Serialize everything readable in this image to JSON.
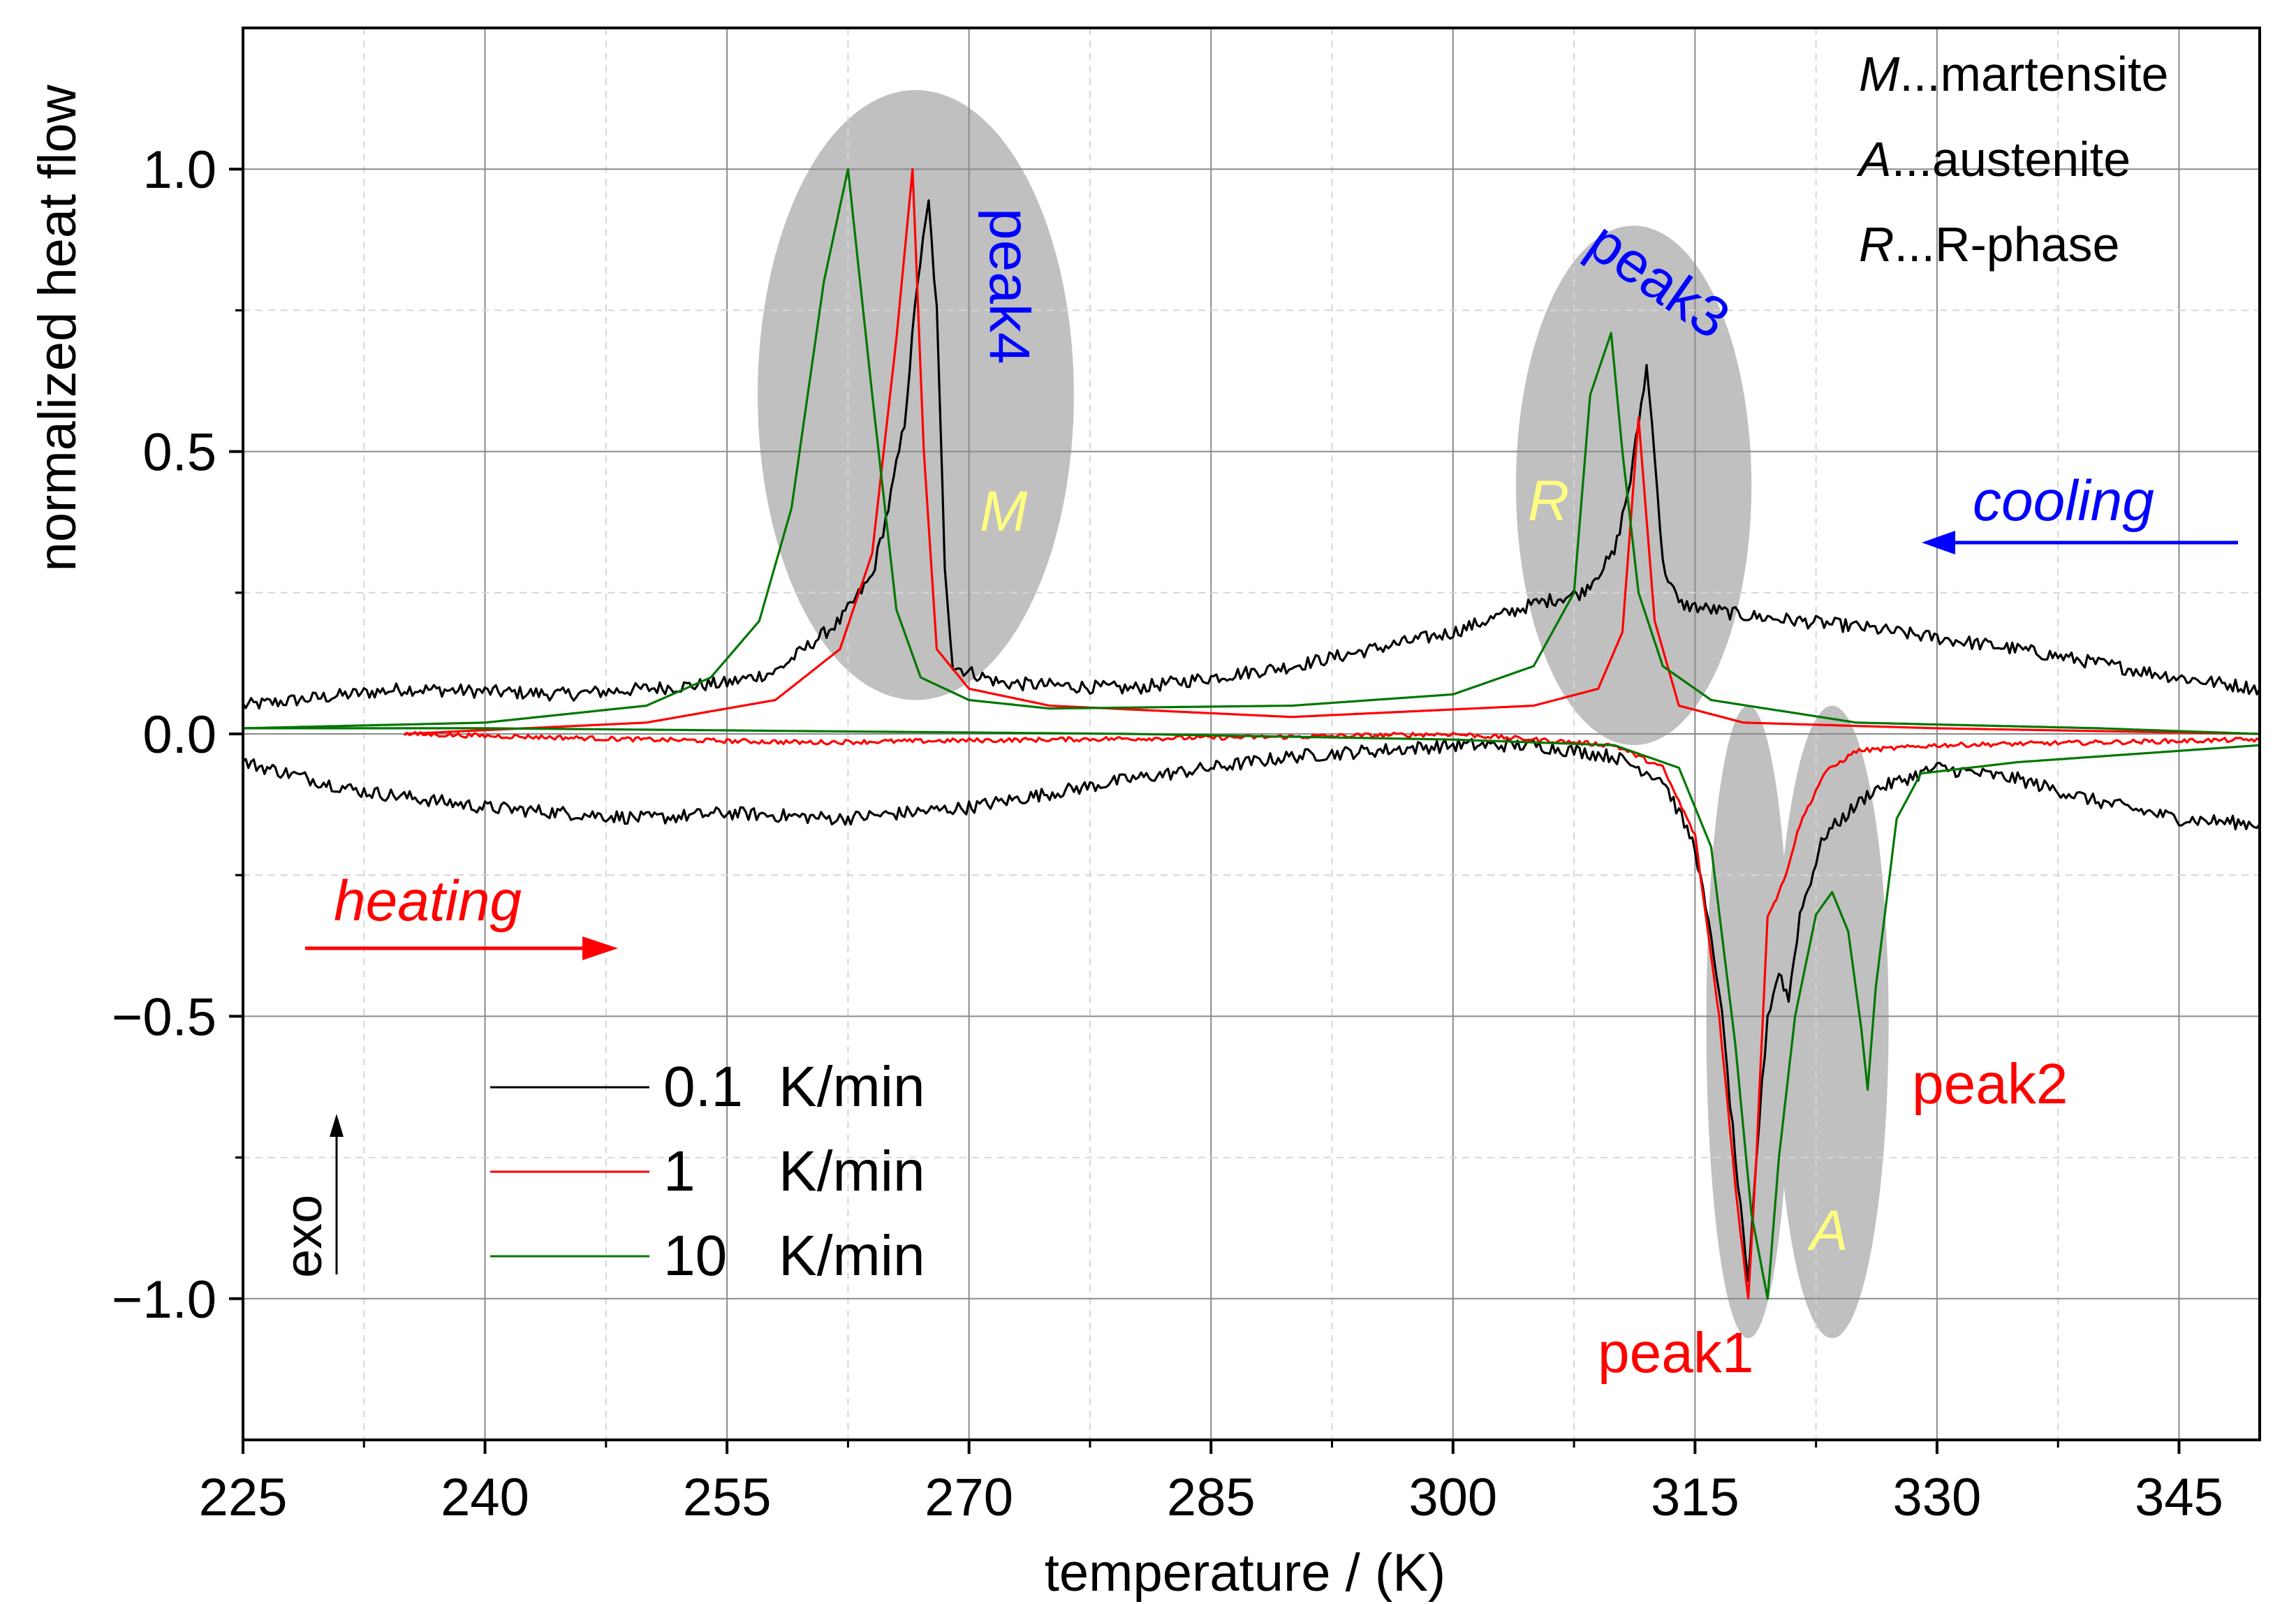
{
  "chart_data": {
    "type": "line",
    "xlabel": "temperature / (K)",
    "ylabel": "normalized heat flow",
    "xlim": [
      225,
      350
    ],
    "ylim": [
      -1.25,
      1.25
    ],
    "x_ticks": [
      225,
      240,
      255,
      270,
      285,
      300,
      315,
      330,
      345
    ],
    "x_tick_labels": [
      "225",
      "240",
      "255",
      "270",
      "285",
      "300",
      "315",
      "330",
      "345"
    ],
    "y_ticks": [
      -1.0,
      -0.5,
      0.0,
      0.5,
      1.0
    ],
    "y_tick_labels": [
      "−1.0",
      "−0.5",
      "0.0",
      "0.5",
      "1.0"
    ],
    "grid": true,
    "legend": {
      "placement": "bottom-left",
      "entries": [
        {
          "rate": "0.1",
          "unit": "K/min",
          "color": "#000000"
        },
        {
          "rate": "1",
          "unit": "K/min",
          "color": "#ff0000"
        },
        {
          "rate": "10",
          "unit": "K/min",
          "color": "#007700"
        }
      ]
    },
    "phase_legend": [
      {
        "symbol": "M",
        "text": "...martensite"
      },
      {
        "symbol": "A",
        "text": "...austenite"
      },
      {
        "symbol": "R",
        "text": "...R-phase"
      }
    ],
    "annotations": {
      "peak1": "peak1",
      "peak2": "peak2",
      "peak3": "peak3",
      "peak4": "peak4",
      "phase_m": "M",
      "phase_r": "R",
      "phase_a": "A",
      "cooling": "cooling",
      "heating": "heating",
      "exo": "exo"
    },
    "colors": {
      "shade": "#c0c0c0",
      "blue_text": "#0000ff",
      "red_text": "#ff0000",
      "yellow_text": "#ffff80"
    },
    "series": [
      {
        "name": "0.1 K/min cooling",
        "color": "#000000",
        "noise": 0.012,
        "points": [
          [
            225,
            0.05
          ],
          [
            235,
            0.08
          ],
          [
            245,
            0.07
          ],
          [
            250,
            0.08
          ],
          [
            255,
            0.09
          ],
          [
            258,
            0.11
          ],
          [
            262,
            0.2
          ],
          [
            264,
            0.28
          ],
          [
            265,
            0.4
          ],
          [
            266,
            0.55
          ],
          [
            266.8,
            0.8
          ],
          [
            267.5,
            0.94
          ],
          [
            268,
            0.75
          ],
          [
            268.5,
            0.3
          ],
          [
            269,
            0.12
          ],
          [
            272,
            0.09
          ],
          [
            280,
            0.08
          ],
          [
            290,
            0.12
          ],
          [
            300,
            0.18
          ],
          [
            305,
            0.23
          ],
          [
            308,
            0.25
          ],
          [
            310,
            0.32
          ],
          [
            311,
            0.45
          ],
          [
            312,
            0.65
          ],
          [
            312.5,
            0.5
          ],
          [
            313,
            0.3
          ],
          [
            314,
            0.23
          ],
          [
            318,
            0.21
          ],
          [
            325,
            0.19
          ],
          [
            335,
            0.15
          ],
          [
            345,
            0.1
          ],
          [
            350,
            0.08
          ]
        ]
      },
      {
        "name": "1 K/min cooling",
        "color": "#ff0000",
        "noise": 0.0,
        "points": [
          [
            235,
            0.0
          ],
          [
            250,
            0.02
          ],
          [
            258,
            0.06
          ],
          [
            262,
            0.15
          ],
          [
            264,
            0.32
          ],
          [
            265.5,
            0.7
          ],
          [
            266.5,
            1.0
          ],
          [
            267.2,
            0.5
          ],
          [
            268,
            0.15
          ],
          [
            270,
            0.08
          ],
          [
            275,
            0.05
          ],
          [
            290,
            0.03
          ],
          [
            305,
            0.05
          ],
          [
            309,
            0.08
          ],
          [
            310.5,
            0.18
          ],
          [
            311.5,
            0.56
          ],
          [
            312.5,
            0.2
          ],
          [
            314,
            0.05
          ],
          [
            318,
            0.02
          ],
          [
            330,
            0.01
          ],
          [
            350,
            0.0
          ]
        ]
      },
      {
        "name": "10 K/min cooling",
        "color": "#007700",
        "noise": 0.0,
        "points": [
          [
            225,
            0.01
          ],
          [
            240,
            0.02
          ],
          [
            250,
            0.05
          ],
          [
            254,
            0.1
          ],
          [
            257,
            0.2
          ],
          [
            259,
            0.4
          ],
          [
            261,
            0.8
          ],
          [
            262.5,
            1.0
          ],
          [
            264,
            0.6
          ],
          [
            265.5,
            0.22
          ],
          [
            267,
            0.1
          ],
          [
            270,
            0.06
          ],
          [
            275,
            0.045
          ],
          [
            290,
            0.05
          ],
          [
            300,
            0.07
          ],
          [
            305,
            0.12
          ],
          [
            307.5,
            0.25
          ],
          [
            308.5,
            0.6
          ],
          [
            309.8,
            0.71
          ],
          [
            310.5,
            0.5
          ],
          [
            311.5,
            0.25
          ],
          [
            313,
            0.12
          ],
          [
            316,
            0.06
          ],
          [
            325,
            0.02
          ],
          [
            340,
            0.01
          ],
          [
            350,
            0.0
          ]
        ]
      },
      {
        "name": "0.1 K/min heating",
        "color": "#000000",
        "noise": 0.012,
        "points": [
          [
            225,
            -0.05
          ],
          [
            232,
            -0.1
          ],
          [
            240,
            -0.13
          ],
          [
            250,
            -0.15
          ],
          [
            255,
            -0.14
          ],
          [
            262,
            -0.15
          ],
          [
            270,
            -0.13
          ],
          [
            280,
            -0.08
          ],
          [
            290,
            -0.04
          ],
          [
            300,
            -0.02
          ],
          [
            305,
            -0.02
          ],
          [
            310,
            -0.04
          ],
          [
            313,
            -0.08
          ],
          [
            315,
            -0.2
          ],
          [
            316.5,
            -0.45
          ],
          [
            317.5,
            -0.75
          ],
          [
            318.3,
            -0.98
          ],
          [
            318.8,
            -0.75
          ],
          [
            319.5,
            -0.5
          ],
          [
            320.2,
            -0.42
          ],
          [
            320.8,
            -0.47
          ],
          [
            321.5,
            -0.32
          ],
          [
            323,
            -0.18
          ],
          [
            326,
            -0.1
          ],
          [
            330,
            -0.06
          ],
          [
            335,
            -0.08
          ],
          [
            340,
            -0.12
          ],
          [
            345,
            -0.15
          ],
          [
            350,
            -0.16
          ]
        ]
      },
      {
        "name": "1 K/min heating",
        "color": "#ff0000",
        "noise": 0.004,
        "points": [
          [
            235,
            0.0
          ],
          [
            250,
            -0.01
          ],
          [
            260,
            -0.015
          ],
          [
            275,
            -0.01
          ],
          [
            290,
            -0.005
          ],
          [
            300,
            0.0
          ],
          [
            305,
            -0.01
          ],
          [
            310,
            -0.02
          ],
          [
            313,
            -0.06
          ],
          [
            315,
            -0.18
          ],
          [
            316.5,
            -0.5
          ],
          [
            317.5,
            -0.8
          ],
          [
            318.3,
            -1.0
          ],
          [
            318.8,
            -0.75
          ],
          [
            319.5,
            -0.32
          ],
          [
            319.9,
            -0.3
          ],
          [
            320.5,
            -0.26
          ],
          [
            321.5,
            -0.16
          ],
          [
            323,
            -0.07
          ],
          [
            325,
            -0.03
          ],
          [
            330,
            -0.02
          ],
          [
            340,
            -0.015
          ],
          [
            350,
            -0.01
          ]
        ]
      },
      {
        "name": "10 K/min heating",
        "color": "#007700",
        "noise": 0.0,
        "points": [
          [
            225,
            0.01
          ],
          [
            240,
            0.01
          ],
          [
            260,
            0.005
          ],
          [
            280,
            0.0
          ],
          [
            300,
            -0.01
          ],
          [
            310,
            -0.02
          ],
          [
            314,
            -0.06
          ],
          [
            316,
            -0.2
          ],
          [
            317.5,
            -0.55
          ],
          [
            318.5,
            -0.85
          ],
          [
            319.5,
            -1.0
          ],
          [
            320.2,
            -0.75
          ],
          [
            321.2,
            -0.5
          ],
          [
            322.5,
            -0.32
          ],
          [
            323.5,
            -0.28
          ],
          [
            324.5,
            -0.35
          ],
          [
            325.3,
            -0.52
          ],
          [
            325.7,
            -0.63
          ],
          [
            326.2,
            -0.45
          ],
          [
            327.5,
            -0.15
          ],
          [
            329,
            -0.07
          ],
          [
            335,
            -0.05
          ],
          [
            345,
            -0.03
          ],
          [
            350,
            -0.02
          ]
        ]
      }
    ],
    "shaded_regions": [
      {
        "label": "peak4 region",
        "cx": 266.7,
        "cy": 0.6,
        "rx": 9.8,
        "ry": 0.54
      },
      {
        "label": "peak3 region",
        "cx": 311.2,
        "cy": 0.44,
        "rx": 7.3,
        "ry": 0.46
      },
      {
        "label": "peak1 region",
        "cx": 318.3,
        "cy": -0.51,
        "rx": 2.6,
        "ry": 0.56
      },
      {
        "label": "peak2 region",
        "cx": 323.5,
        "cy": -0.51,
        "rx": 3.5,
        "ry": 0.56
      }
    ]
  }
}
